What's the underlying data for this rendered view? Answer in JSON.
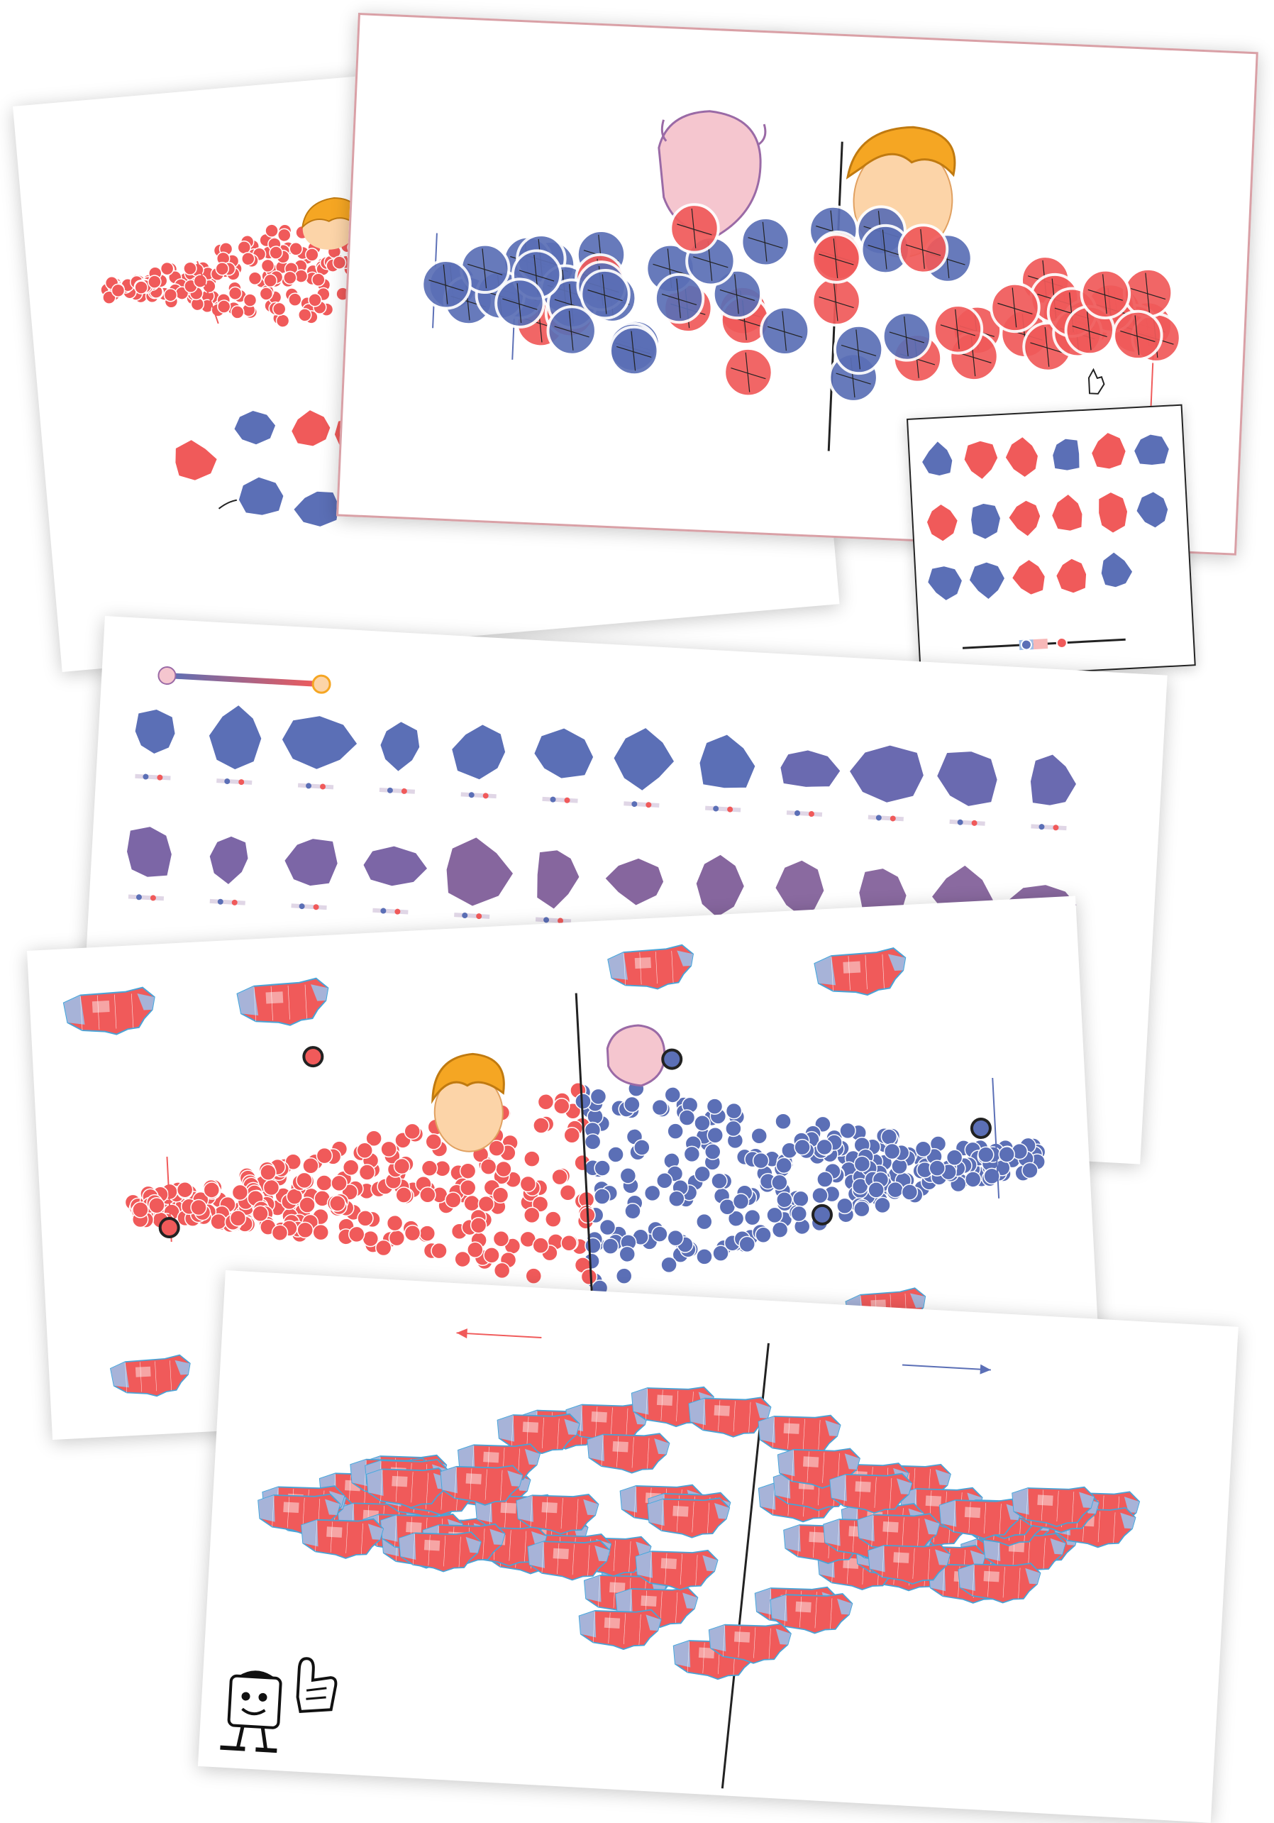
{
  "colors": {
    "red": "#f05a5a",
    "blue": "#5b6fb6",
    "purple": "#7c5a8c",
    "dark_purple": "#8a5a7a",
    "light_red": "#f7b8b8",
    "light_blue": "#9fbde6",
    "hair": "#f5a623",
    "face": "#fcd4a8",
    "pink_face": "#f5c6cf",
    "outline": "#1a1a1a",
    "map_outline": "#4aa3d6"
  },
  "icons": {
    "tooltip_cursor": "hand-pointer-icon",
    "mascot": "mascot-map-character-icon",
    "foam_finger": "foam-finger-icon"
  }
}
